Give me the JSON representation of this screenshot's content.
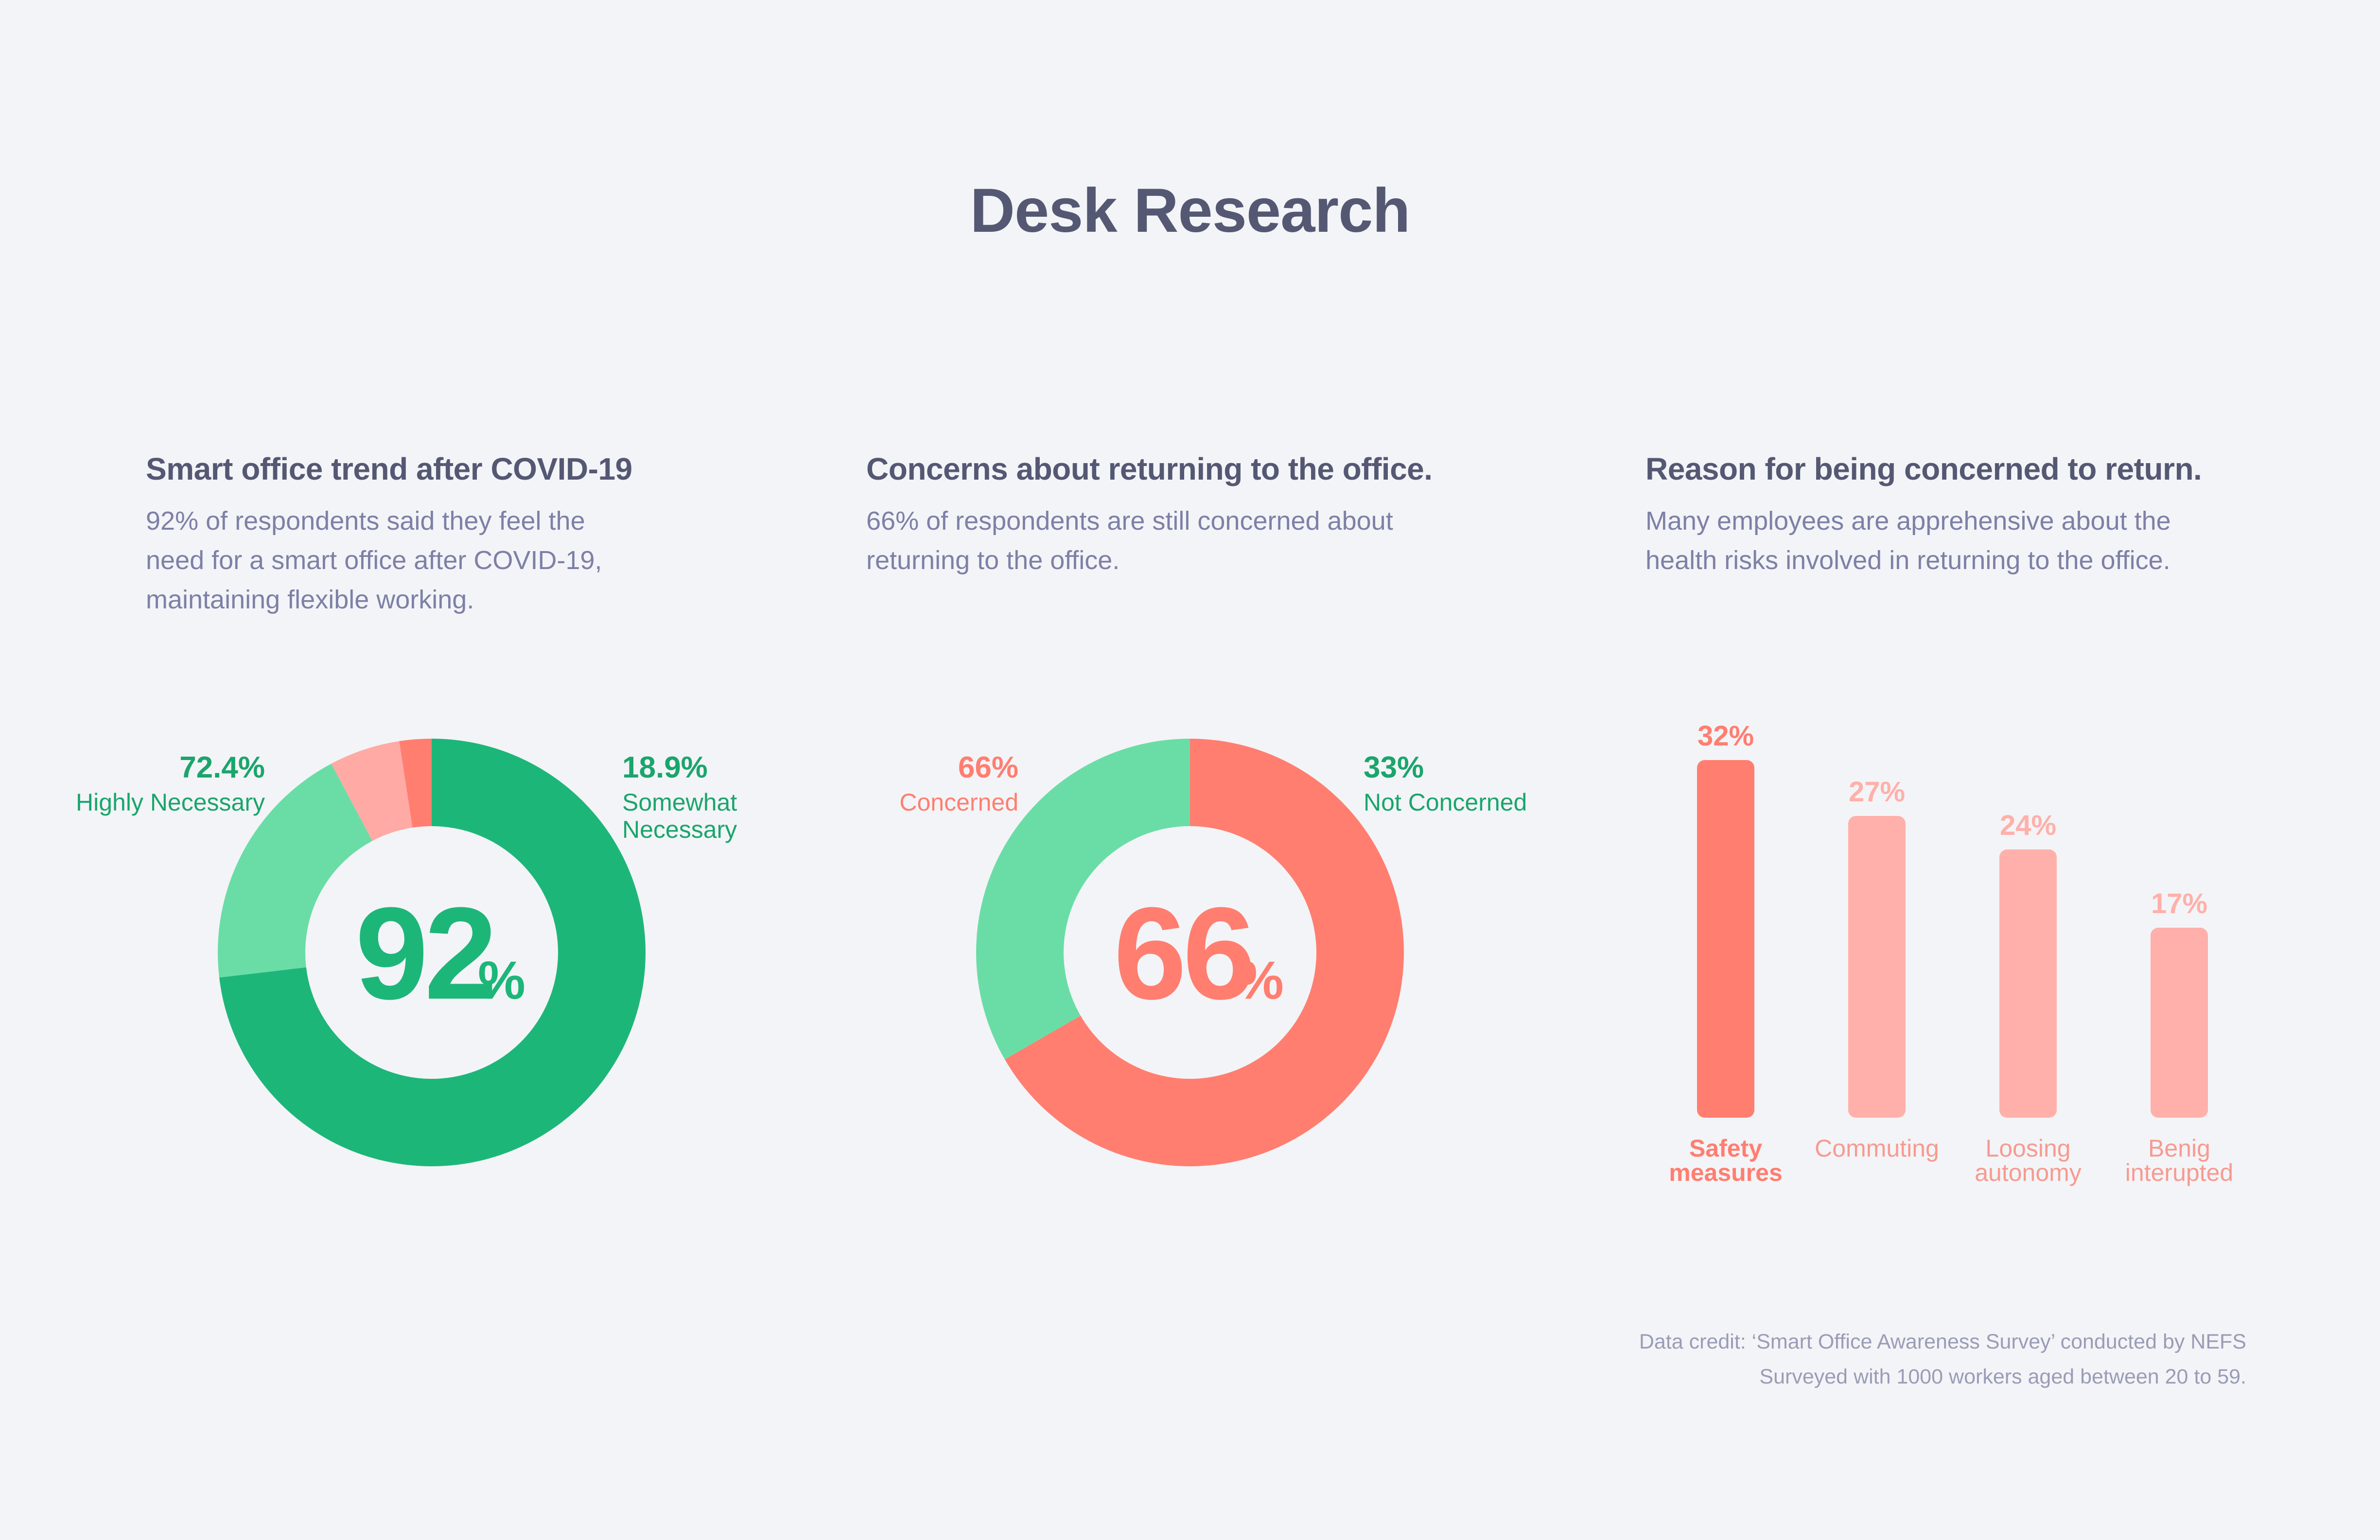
{
  "page": {
    "title": "Desk Research"
  },
  "panels": [
    {
      "title": "Smart office trend after COVID-19",
      "description": "92% of respondents said they feel the\nneed for a smart office after COVID-19,\nmaintaining flexible working."
    },
    {
      "title": "Concerns about returning to the office.",
      "description": "66% of respondents are still concerned about\nreturning to the office."
    },
    {
      "title": "Reason for being concerned to return.",
      "description": "Many employees are apprehensive about the\nhealth risks involved in returning to the office."
    }
  ],
  "credit": {
    "line1": "Data credit: ‘Smart Office Awareness Survey’ conducted by NEFS",
    "line2": "Surveyed with 1000 workers aged between 20 to 59."
  },
  "colors": {
    "green_dark": "#1db679",
    "green_light": "#6adda6",
    "green_text": "#1aa56c",
    "coral": "#ff7e70",
    "coral_light": "#ffb0aa",
    "title": "#555873"
  },
  "chart_data": [
    {
      "type": "pie",
      "style": "donut",
      "center_value": "92",
      "center_unit": "%",
      "slices": [
        {
          "label_lines": [
            "Highly Necessary"
          ],
          "value": 72.4,
          "value_label": "72.4%",
          "color": "#1db679",
          "labeled": true
        },
        {
          "label_lines": [
            "Somewhat",
            "Necessary"
          ],
          "value": 18.9,
          "value_label": "18.9%",
          "color": "#6adda6",
          "labeled": true
        },
        {
          "value": 5.3,
          "color": "#ffaaa5",
          "labeled": false
        },
        {
          "value": 2.4,
          "color": "#ff7e70",
          "labeled": false
        }
      ]
    },
    {
      "type": "pie",
      "style": "donut",
      "center_value": "66",
      "center_unit": "%",
      "slices": [
        {
          "label_lines": [
            "Concerned"
          ],
          "value": 66,
          "value_label": "66%",
          "color": "#ff7e70",
          "labeled": true
        },
        {
          "label_lines": [
            "Not Concerned"
          ],
          "value": 33,
          "value_label": "33%",
          "color": "#6adda6",
          "labeled": true
        }
      ]
    },
    {
      "type": "bar",
      "categories": [
        [
          "Safety",
          "measures"
        ],
        [
          "Commuting"
        ],
        [
          "Loosing",
          "autonomy"
        ],
        [
          "Benig",
          "interupted"
        ]
      ],
      "values": [
        32,
        27,
        24,
        17
      ],
      "value_labels": [
        "32%",
        "27%",
        "24%",
        "17%"
      ],
      "highlight_index": 0,
      "colors": [
        "#ff7e70",
        "#ffb0aa",
        "#ffb0aa",
        "#ffb0aa"
      ]
    }
  ]
}
